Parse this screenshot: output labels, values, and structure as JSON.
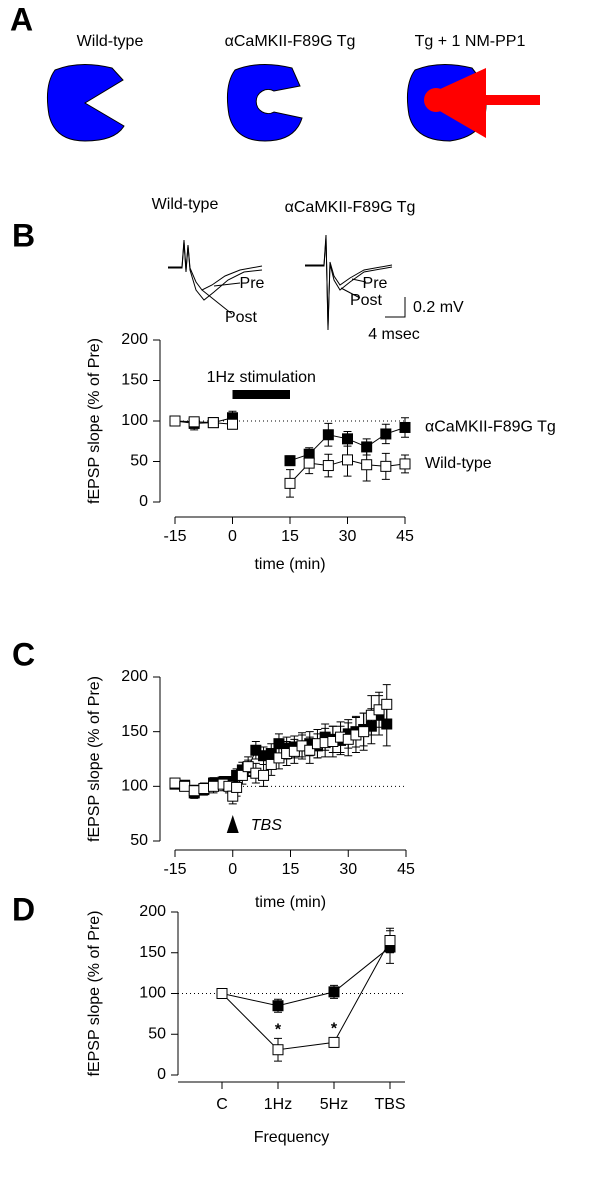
{
  "panel_a": {
    "panel_label": "A",
    "labels": [
      "Wild-type",
      "αCaMKII-F89G Tg",
      "Tg + 1 NM-PP1"
    ]
  },
  "panel_b_traces": {
    "labels": [
      "Wild-type",
      "αCaMKII-F89G Tg"
    ],
    "pre": "Pre",
    "post": "Post",
    "scale_y": "0.2 mV",
    "scale_x": "4 msec"
  },
  "chart_data": [
    {
      "type": "line",
      "panel_label": "B",
      "ylabel": "fEPSP slope (% of Pre)",
      "xlabel": "time (min)",
      "xlim": [
        -15,
        45
      ],
      "xticks": [
        -15,
        0,
        15,
        30,
        45
      ],
      "ylim": [
        0,
        200
      ],
      "yticks": [
        0,
        50,
        100,
        150,
        200
      ],
      "reference_line": 100,
      "line_color": "#000000",
      "stimulation": {
        "label": "1Hz stimulation",
        "start": 0,
        "end": 15
      },
      "x": [
        -15,
        -10,
        -5,
        0,
        5,
        10,
        15,
        20,
        25,
        30,
        35,
        40,
        45
      ],
      "series": [
        {
          "name": "αCaMKII-F89G Tg",
          "color": "#000000",
          "values": [
            100,
            97,
            98,
            104,
            null,
            null,
            51,
            59,
            83,
            78,
            68,
            84,
            92
          ],
          "errors": [
            4,
            8,
            6,
            8,
            null,
            null,
            6,
            8,
            14,
            9,
            10,
            12,
            12
          ]
        },
        {
          "name": "Wild-type",
          "color": "#ffffff",
          "values": [
            100,
            99,
            98,
            96,
            null,
            null,
            23,
            48,
            45,
            52,
            46,
            44,
            47
          ],
          "errors": [
            4,
            6,
            6,
            6,
            null,
            null,
            17,
            13,
            14,
            20,
            20,
            16,
            11
          ]
        }
      ]
    },
    {
      "type": "line",
      "panel_label": "C",
      "ylabel": "fEPSP slope (% of Pre)",
      "xlabel": "time (min)",
      "xlim": [
        -15,
        45
      ],
      "xticks": [
        -15,
        0,
        15,
        30,
        45
      ],
      "ylim": [
        50,
        200
      ],
      "yticks": [
        50,
        100,
        150,
        200
      ],
      "reference_line": 100,
      "line_color": "#000000",
      "marker": {
        "label": "TBS",
        "x": 0
      },
      "x": [
        -15,
        -12.5,
        -10,
        -7.5,
        -5,
        -2.5,
        -1,
        0,
        1,
        2.5,
        4,
        6,
        8,
        10,
        12,
        14,
        16,
        18,
        20,
        22,
        24,
        26,
        28,
        30,
        32,
        34,
        36,
        38,
        40
      ],
      "series": [
        {
          "color": "#000000",
          "values": [
            102,
            101,
            94,
            97,
            103,
            104,
            104,
            103,
            110,
            115,
            117,
            133,
            128,
            130,
            139,
            135,
            136,
            137,
            139,
            137,
            145,
            143,
            142,
            148,
            150,
            152,
            155,
            165,
            157
          ],
          "errors": [
            4,
            4,
            5,
            5,
            5,
            5,
            5,
            6,
            6,
            7,
            7,
            8,
            8,
            9,
            9,
            10,
            10,
            10,
            11,
            11,
            12,
            12,
            13,
            13,
            14,
            15,
            16,
            18,
            20
          ]
        },
        {
          "color": "#ffffff",
          "values": [
            103,
            100,
            96,
            98,
            100,
            102,
            100,
            91,
            99,
            110,
            118,
            112,
            110,
            120,
            126,
            130,
            132,
            137,
            133,
            139,
            140,
            141,
            145,
            143,
            147,
            150,
            165,
            170,
            175
          ],
          "errors": [
            4,
            4,
            5,
            5,
            6,
            6,
            6,
            7,
            8,
            8,
            9,
            9,
            10,
            10,
            10,
            11,
            11,
            12,
            12,
            13,
            13,
            14,
            14,
            15,
            16,
            17,
            18,
            16,
            18
          ]
        }
      ]
    },
    {
      "type": "line",
      "panel_label": "D",
      "ylabel": "fEPSP slope (% of Pre)",
      "xlabel": "Frequency",
      "ylim": [
        0,
        200
      ],
      "yticks": [
        0,
        50,
        100,
        150,
        200
      ],
      "reference_line": 100,
      "line_color": "#000000",
      "categories": [
        "C",
        "1Hz",
        "5Hz",
        "TBS"
      ],
      "series": [
        {
          "color": "#000000",
          "values": [
            100,
            85,
            102,
            157
          ],
          "errors": [
            0,
            8,
            8,
            20
          ]
        },
        {
          "color": "#ffffff",
          "values": [
            100,
            31,
            40,
            165
          ],
          "errors": [
            0,
            14,
            6,
            15
          ]
        }
      ],
      "annotations": [
        {
          "text": "*",
          "at": "1Hz"
        },
        {
          "text": "*",
          "at": "5Hz"
        }
      ]
    }
  ]
}
